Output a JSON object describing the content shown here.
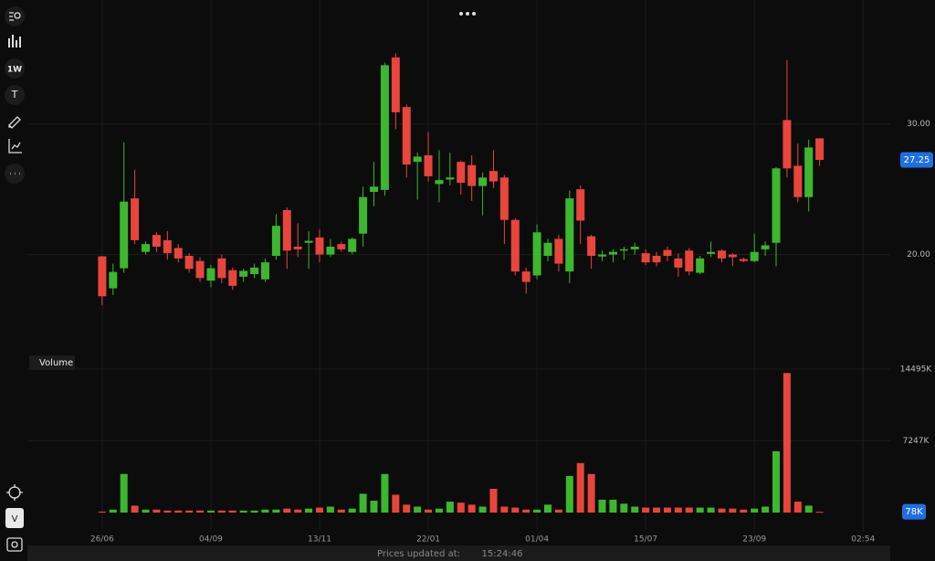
{
  "toolbar": {
    "interval": "1W",
    "text_tool": "T",
    "volume_toggle": "V"
  },
  "status": {
    "label": "Prices updated at:",
    "time": "15:24:46"
  },
  "chart_data": [
    {
      "type": "candlestick",
      "up_color": "#3cb72f",
      "down_color": "#e8453c",
      "xlim": [
        -9.4,
        72.5
      ],
      "xticks": [
        {
          "value": 0,
          "label": "26/06"
        },
        {
          "value": 10,
          "label": "04/09"
        },
        {
          "value": 20,
          "label": "13/11"
        },
        {
          "value": 30,
          "label": "22/01"
        },
        {
          "value": 40,
          "label": "01/04"
        },
        {
          "value": 50,
          "label": "15/07"
        },
        {
          "value": 60,
          "label": "23/09"
        },
        {
          "value": 70,
          "label": "02:54"
        }
      ],
      "ylim": [
        12.2,
        39.5
      ],
      "yticks": [
        {
          "value": 20,
          "label": "20.00"
        },
        {
          "value": 30,
          "label": "30.00"
        }
      ],
      "grid": true,
      "open": [
        19.86,
        17.41,
        18.95,
        24.3,
        20.2,
        21.5,
        21.1,
        20.5,
        19.9,
        19.5,
        18.0,
        19.7,
        18.8,
        18.3,
        18.5,
        18.1,
        19.9,
        23.4,
        20.6,
        20.9,
        21.3,
        20.0,
        20.8,
        20.2,
        21.6,
        24.8,
        24.95,
        35.1,
        31.3,
        27.1,
        27.6,
        25.4,
        25.75,
        27.1,
        26.85,
        25.25,
        26.4,
        25.9,
        22.65,
        18.7,
        18.4,
        19.9,
        21.2,
        18.7,
        25.0,
        21.4,
        19.85,
        20.0,
        20.3,
        20.4,
        20.1,
        19.9,
        20.35,
        19.7,
        20.3,
        18.6,
        20.05,
        20.3,
        20.0,
        19.65,
        19.5,
        20.4,
        20.9,
        30.3,
        26.8,
        24.4,
        28.9
      ],
      "high": [
        19.9,
        19.3,
        28.6,
        26.5,
        21.0,
        21.7,
        21.8,
        20.8,
        20.1,
        19.8,
        19.2,
        20.0,
        19.0,
        18.9,
        19.3,
        19.7,
        23.1,
        23.6,
        22.4,
        21.8,
        21.9,
        21.2,
        21.0,
        21.3,
        25.2,
        27.1,
        34.7,
        35.4,
        31.5,
        27.8,
        29.4,
        28.0,
        27.8,
        27.2,
        27.6,
        26.3,
        28.0,
        26.1,
        22.8,
        19.0,
        22.3,
        21.2,
        21.5,
        24.9,
        25.3,
        21.5,
        20.3,
        20.4,
        20.6,
        20.9,
        20.4,
        20.2,
        20.6,
        20.1,
        20.5,
        19.9,
        21.0,
        20.4,
        20.1,
        19.75,
        21.6,
        21.0,
        26.7,
        34.9,
        28.5,
        28.8,
        28.9
      ],
      "low": [
        16.1,
        16.9,
        18.6,
        20.8,
        20.0,
        20.2,
        19.6,
        19.4,
        18.6,
        17.9,
        17.5,
        17.8,
        17.3,
        17.9,
        18.2,
        17.9,
        19.6,
        18.9,
        19.8,
        18.9,
        19.4,
        19.8,
        20.2,
        20.0,
        20.6,
        23.7,
        24.5,
        29.6,
        25.9,
        24.2,
        25.6,
        24.0,
        25.3,
        24.6,
        24.1,
        23.0,
        25.1,
        20.8,
        18.4,
        17.0,
        18.1,
        19.5,
        18.7,
        17.8,
        20.8,
        18.9,
        19.5,
        19.4,
        19.6,
        20.0,
        19.2,
        19.1,
        19.5,
        18.3,
        18.4,
        18.5,
        19.8,
        19.4,
        19.1,
        19.4,
        19.4,
        19.9,
        19.1,
        25.9,
        24.0,
        23.3,
        26.8
      ],
      "close": [
        16.8,
        18.67,
        24.05,
        21.1,
        20.8,
        20.6,
        20.1,
        19.7,
        18.9,
        18.2,
        18.95,
        18.2,
        17.6,
        18.75,
        19.0,
        19.4,
        22.2,
        20.3,
        20.4,
        21.05,
        20.0,
        20.6,
        20.4,
        21.2,
        24.4,
        25.2,
        34.5,
        30.9,
        26.9,
        27.5,
        26.0,
        25.7,
        25.9,
        25.5,
        25.25,
        25.9,
        25.6,
        22.65,
        18.7,
        17.9,
        21.7,
        20.9,
        19.3,
        24.3,
        22.6,
        19.9,
        20.0,
        20.2,
        20.4,
        20.6,
        19.4,
        19.4,
        19.9,
        19.0,
        18.7,
        19.7,
        20.2,
        19.7,
        19.8,
        19.5,
        20.2,
        20.7,
        26.6,
        26.6,
        24.4,
        28.2,
        27.25
      ],
      "last_color": "#1f6fe0"
    },
    {
      "type": "bar",
      "title": "Volume",
      "ylim": [
        0,
        15788
      ],
      "yticks": [
        {
          "value": 7247,
          "label": "7247K"
        },
        {
          "value": 14495,
          "label": "14495K"
        }
      ],
      "values": [
        100,
        300,
        3900,
        700,
        300,
        300,
        200,
        200,
        200,
        200,
        200,
        200,
        200,
        200,
        200,
        300,
        300,
        400,
        300,
        400,
        500,
        600,
        300,
        400,
        1900,
        1200,
        3900,
        1800,
        800,
        600,
        300,
        400,
        1100,
        1000,
        800,
        600,
        2400,
        600,
        500,
        300,
        300,
        800,
        300,
        3700,
        5000,
        3900,
        1300,
        1300,
        900,
        600,
        500,
        500,
        500,
        500,
        500,
        500,
        500,
        400,
        400,
        300,
        400,
        600,
        6200,
        14100,
        1100,
        700,
        78
      ],
      "value_labels": [
        null,
        null,
        null,
        null,
        null,
        null,
        null,
        null,
        null,
        null,
        null,
        null,
        null,
        null,
        null,
        null,
        null,
        null,
        null,
        null,
        null,
        null,
        null,
        null,
        null,
        null,
        null,
        null,
        null,
        null,
        null,
        null,
        null,
        null,
        null,
        null,
        null,
        null,
        null,
        null,
        null,
        null,
        null,
        null,
        null,
        null,
        null,
        null,
        null,
        null,
        null,
        null,
        null,
        null,
        null,
        null,
        null,
        null,
        null,
        null,
        null,
        null,
        null,
        null,
        null,
        null,
        "78K"
      ]
    }
  ]
}
